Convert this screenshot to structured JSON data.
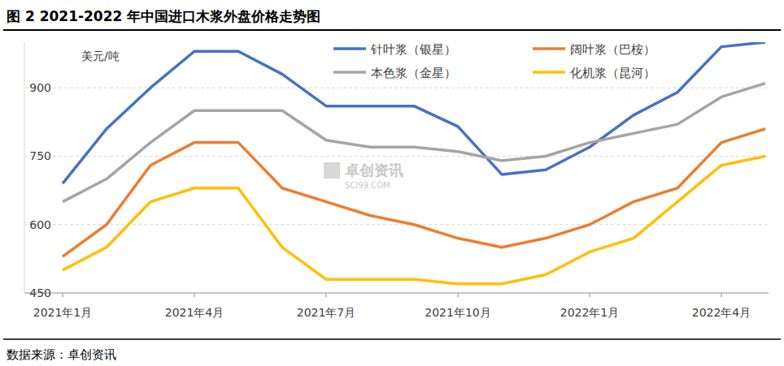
{
  "chart_data": {
    "type": "line",
    "title": "图 2 2021-2022 年中国进口木浆外盘价格走势图",
    "y_label": "美元/吨",
    "source": "数据来源：卓创资讯",
    "annotations": [
      "卓创资讯",
      "SCI99.COM"
    ],
    "categories": [
      "2021年1月",
      null,
      null,
      "2021年4月",
      null,
      null,
      "2021年7月",
      null,
      null,
      "2021年10月",
      null,
      null,
      "2022年1月",
      null,
      null,
      "2022年4月",
      null
    ],
    "series": [
      {
        "name": "针叶浆（银星）",
        "color": "#4472c4",
        "values": [
          690,
          810,
          900,
          980,
          980,
          930,
          860,
          860,
          860,
          815,
          710,
          720,
          770,
          840,
          890,
          990,
          1000
        ]
      },
      {
        "name": "阔叶浆（巴桉）",
        "color": "#ed7d31",
        "values": [
          530,
          600,
          730,
          780,
          780,
          680,
          650,
          620,
          600,
          570,
          550,
          570,
          600,
          650,
          680,
          780,
          810
        ]
      },
      {
        "name": "本色浆（金星）",
        "color": "#a5a5a5",
        "values": [
          650,
          700,
          780,
          850,
          850,
          850,
          785,
          770,
          770,
          760,
          740,
          750,
          780,
          800,
          820,
          880,
          910
        ]
      },
      {
        "name": "化机浆（昆河）",
        "color": "#ffc000",
        "values": [
          500,
          550,
          650,
          680,
          680,
          550,
          480,
          480,
          480,
          470,
          470,
          490,
          540,
          570,
          650,
          730,
          750
        ]
      }
    ],
    "ylim": [
      450,
      1000
    ],
    "yticks": [
      450,
      600,
      750,
      900
    ],
    "grid": true,
    "legend": "top"
  }
}
